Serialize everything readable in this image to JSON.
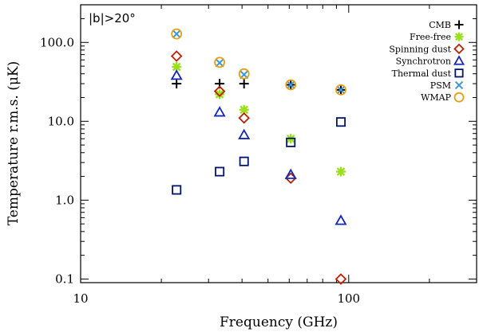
{
  "chart_data": {
    "type": "scatter",
    "title": "",
    "xlabel": "Frequency (GHz)",
    "ylabel": "Temperature r.m.s. (μK)",
    "xscale": "log",
    "yscale": "log",
    "xlim": [
      10,
      300
    ],
    "ylim": [
      0.09,
      300
    ],
    "x_tick_labels": [
      {
        "value": 10,
        "label": "10"
      },
      {
        "value": 100,
        "label": "100"
      }
    ],
    "y_tick_labels": [
      {
        "value": 0.1,
        "label": "0.1"
      },
      {
        "value": 1,
        "label": "1.0"
      },
      {
        "value": 10,
        "label": "10.0"
      },
      {
        "value": 100,
        "label": "100.0"
      }
    ],
    "annotation": "|b|>20°",
    "legend_position": "top-right",
    "series": [
      {
        "name": "CMB",
        "marker": "plus",
        "color": "#000000",
        "points": [
          [
            22.8,
            30
          ],
          [
            33,
            30
          ],
          [
            40.7,
            30
          ],
          [
            60.8,
            29
          ],
          [
            93.5,
            25
          ]
        ]
      },
      {
        "name": "Free-free",
        "marker": "asterisk",
        "color": "#9be01e",
        "points": [
          [
            22.8,
            49
          ],
          [
            33,
            22
          ],
          [
            40.7,
            14
          ],
          [
            60.8,
            6
          ],
          [
            93.5,
            2.3
          ]
        ]
      },
      {
        "name": "Spinning dust",
        "marker": "diamond",
        "color": "#c01e00",
        "points": [
          [
            22.8,
            67
          ],
          [
            33,
            24
          ],
          [
            40.7,
            11
          ],
          [
            60.8,
            1.9
          ],
          [
            93.5,
            0.1
          ]
        ]
      },
      {
        "name": "Synchrotron",
        "marker": "triangle",
        "color": "#1428b4",
        "points": [
          [
            22.8,
            38
          ],
          [
            33,
            13
          ],
          [
            40.7,
            6.7
          ],
          [
            60.8,
            2.1
          ],
          [
            93.5,
            0.55
          ]
        ]
      },
      {
        "name": "Thermal dust",
        "marker": "square",
        "color": "#00146e",
        "points": [
          [
            22.8,
            1.35
          ],
          [
            33,
            2.3
          ],
          [
            40.7,
            3.1
          ],
          [
            60.8,
            5.4
          ],
          [
            93.5,
            9.8
          ]
        ]
      },
      {
        "name": "PSM",
        "marker": "x",
        "color": "#3c96dc",
        "points": [
          [
            22.8,
            128
          ],
          [
            33,
            55
          ],
          [
            40.7,
            39
          ],
          [
            60.8,
            29
          ],
          [
            93.5,
            25
          ]
        ]
      },
      {
        "name": "WMAP",
        "marker": "circle",
        "color": "#e6a014",
        "points": [
          [
            22.8,
            128
          ],
          [
            33,
            56
          ],
          [
            40.7,
            40
          ],
          [
            60.8,
            29
          ],
          [
            93.5,
            25
          ]
        ]
      }
    ]
  }
}
